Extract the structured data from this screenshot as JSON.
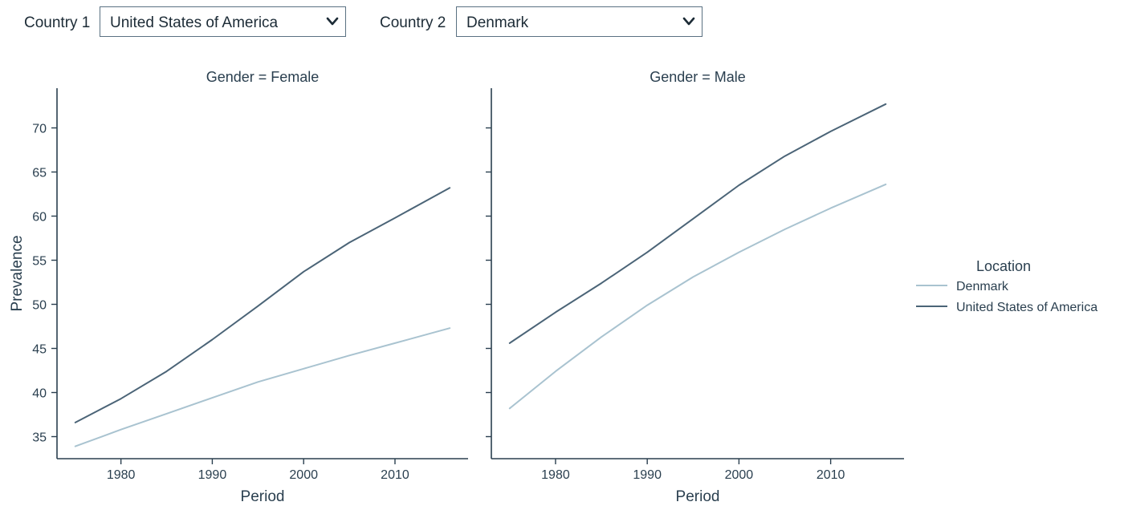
{
  "controls": {
    "country1": {
      "label": "Country 1",
      "value": "United States of America"
    },
    "country2": {
      "label": "Country 2",
      "value": "Denmark"
    }
  },
  "colors": {
    "Denmark": "#a9c3d0",
    "United States of America": "#4b6477",
    "axis": "#2a3f4f"
  },
  "chart_data": [
    {
      "type": "line",
      "title": "Gender = Female",
      "xlabel": "Period",
      "ylabel": "Prevalence",
      "xlim": [
        1973,
        2018
      ],
      "ylim": [
        32.5,
        74.5
      ],
      "xticks": [
        1980,
        1990,
        2000,
        2010
      ],
      "yticks": [
        35,
        40,
        45,
        50,
        55,
        60,
        65,
        70
      ],
      "x": [
        1975,
        1980,
        1985,
        1990,
        1995,
        2000,
        2005,
        2010,
        2016
      ],
      "series": [
        {
          "name": "Denmark",
          "values": [
            33.9,
            35.8,
            37.6,
            39.4,
            41.2,
            42.7,
            44.2,
            45.6,
            47.3
          ]
        },
        {
          "name": "United States of America",
          "values": [
            36.6,
            39.3,
            42.4,
            46.0,
            49.8,
            53.7,
            57.0,
            59.8,
            63.2
          ]
        }
      ]
    },
    {
      "type": "line",
      "title": "Gender = Male",
      "xlabel": "Period",
      "ylabel": "",
      "xlim": [
        1973,
        2018
      ],
      "ylim": [
        32.5,
        74.5
      ],
      "xticks": [
        1980,
        1990,
        2000,
        2010
      ],
      "yticks": [
        35,
        40,
        45,
        50,
        55,
        60,
        65,
        70
      ],
      "x": [
        1975,
        1980,
        1985,
        1990,
        1995,
        2000,
        2005,
        2010,
        2016
      ],
      "series": [
        {
          "name": "Denmark",
          "values": [
            38.2,
            42.4,
            46.3,
            49.9,
            53.1,
            55.9,
            58.5,
            60.9,
            63.6
          ]
        },
        {
          "name": "United States of America",
          "values": [
            45.6,
            49.1,
            52.4,
            55.9,
            59.7,
            63.5,
            66.8,
            69.6,
            72.7
          ]
        }
      ]
    }
  ],
  "legend": {
    "title": "Location",
    "items": [
      "Denmark",
      "United States of America"
    ],
    "placement": "right"
  }
}
